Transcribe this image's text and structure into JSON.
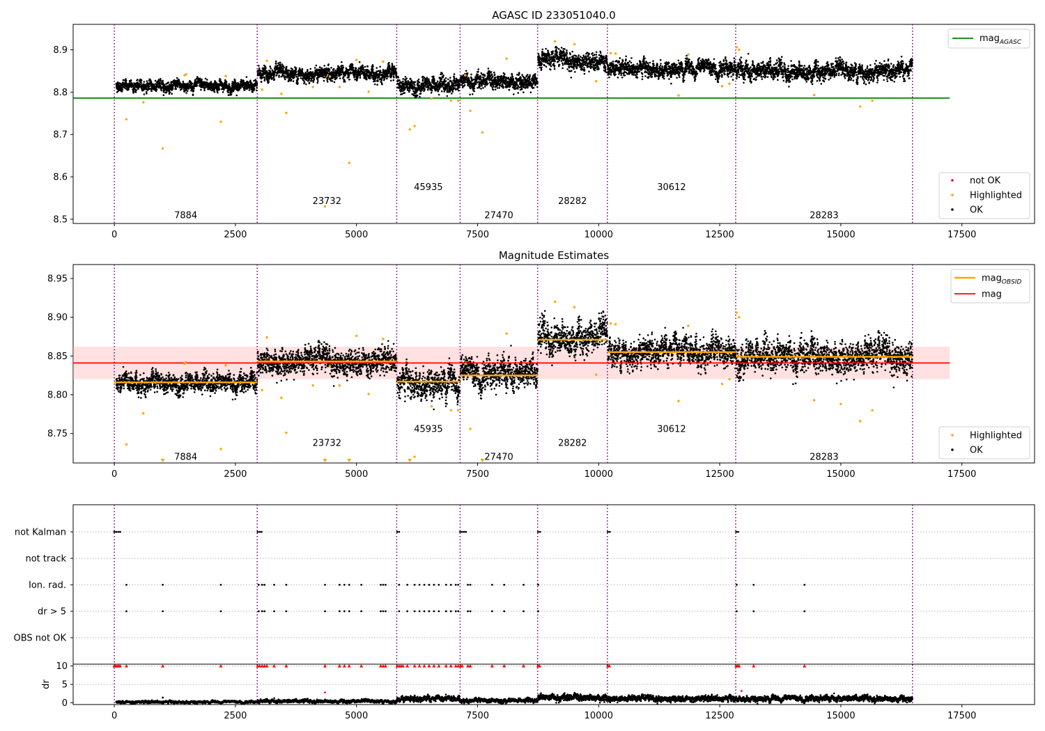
{
  "colors": {
    "ok": "#000000",
    "highlighted": "#ffa500",
    "not_ok": "#ff0000",
    "obs_boundary": "#800080",
    "mag_agasc": "#008000",
    "mag_obsid": "#ffa500",
    "mag": "#ff0000",
    "mag_band": "#ffb3b3",
    "grid": "#b0b0b0"
  },
  "chart_data": [
    {
      "type": "scatter",
      "title": "AGASC ID 233051040.0",
      "xlim": [
        -850,
        19000
      ],
      "ylim": [
        8.49,
        8.96
      ],
      "x_ticks": [
        0,
        2500,
        5000,
        7500,
        10000,
        12500,
        15000,
        17500
      ],
      "x_tick_labels": [
        "0",
        "2500",
        "5000",
        "7500",
        "10000",
        "12500",
        "15000",
        "17500"
      ],
      "y_ticks": [
        8.5,
        8.6,
        8.7,
        8.8,
        8.9
      ],
      "y_tick_labels": [
        "8.5",
        "8.6",
        "8.7",
        "8.8",
        "8.9"
      ],
      "obs_boundaries": [
        0,
        2950,
        5830,
        7140,
        8740,
        10180,
        12830,
        16480
      ],
      "obsid_labels": [
        {
          "text": "7884",
          "x": 1475,
          "y": 8.51
        },
        {
          "text": "23732",
          "x": 4390,
          "y": 8.543
        },
        {
          "text": "45935",
          "x": 6485,
          "y": 8.576
        },
        {
          "text": "27470",
          "x": 7940,
          "y": 8.51
        },
        {
          "text": "28282",
          "x": 9460,
          "y": 8.543
        },
        {
          "text": "30612",
          "x": 11505,
          "y": 8.576
        },
        {
          "text": "28283",
          "x": 14655,
          "y": 8.51
        }
      ],
      "mag_agasc": 8.786,
      "mag_agasc_x": [
        -850,
        17250
      ],
      "segments": [
        {
          "x0": 40,
          "x1": 2950,
          "mean": 8.815,
          "std": 0.006
        },
        {
          "x0": 2960,
          "x1": 5830,
          "mean": 8.843,
          "std": 0.008
        },
        {
          "x0": 5840,
          "x1": 7140,
          "mean": 8.816,
          "std": 0.009
        },
        {
          "x0": 7150,
          "x1": 8740,
          "mean": 8.826,
          "std": 0.009
        },
        {
          "x0": 8750,
          "x1": 10180,
          "mean": 8.874,
          "std": 0.01
        },
        {
          "x0": 10190,
          "x1": 12830,
          "mean": 8.855,
          "std": 0.009
        },
        {
          "x0": 12840,
          "x1": 16480,
          "mean": 8.849,
          "std": 0.01
        }
      ],
      "highlighted": [
        [
          250,
          8.736
        ],
        [
          600,
          8.776
        ],
        [
          1000,
          8.667
        ],
        [
          1450,
          8.84
        ],
        [
          1480,
          8.842
        ],
        [
          2200,
          8.73
        ],
        [
          2300,
          8.838
        ],
        [
          3050,
          8.806
        ],
        [
          3150,
          8.874
        ],
        [
          3450,
          8.796
        ],
        [
          3550,
          8.751
        ],
        [
          4100,
          8.812
        ],
        [
          4350,
          8.53
        ],
        [
          4450,
          8.837
        ],
        [
          4650,
          8.812
        ],
        [
          4850,
          8.633
        ],
        [
          5000,
          8.876
        ],
        [
          5250,
          8.801
        ],
        [
          5550,
          8.872
        ],
        [
          6100,
          8.712
        ],
        [
          6200,
          8.72
        ],
        [
          6550,
          8.785
        ],
        [
          6950,
          8.78
        ],
        [
          7100,
          8.78
        ],
        [
          7250,
          8.84
        ],
        [
          7350,
          8.756
        ],
        [
          7600,
          8.705
        ],
        [
          8100,
          8.879
        ],
        [
          9100,
          8.92
        ],
        [
          9500,
          8.913
        ],
        [
          9950,
          8.826
        ],
        [
          10250,
          8.892
        ],
        [
          10350,
          8.891
        ],
        [
          11650,
          8.792
        ],
        [
          11850,
          8.889
        ],
        [
          12550,
          8.814
        ],
        [
          12700,
          8.82
        ],
        [
          12850,
          8.906
        ],
        [
          12900,
          8.9
        ],
        [
          14450,
          8.793
        ],
        [
          15650,
          8.78
        ],
        [
          15400,
          8.766
        ]
      ],
      "legend_line": [
        {
          "label": "mag",
          "sub": "AGASC",
          "color_key": "mag_agasc"
        }
      ],
      "legend_points": [
        {
          "label": "not OK",
          "color_key": "not_ok"
        },
        {
          "label": "Highlighted",
          "color_key": "highlighted"
        },
        {
          "label": "OK",
          "color_key": "ok"
        }
      ]
    },
    {
      "type": "scatter",
      "title": "Magnitude Estimates",
      "xlim": [
        -850,
        19000
      ],
      "ylim": [
        8.712,
        8.968
      ],
      "x_ticks": [
        0,
        2500,
        5000,
        7500,
        10000,
        12500,
        15000,
        17500
      ],
      "x_tick_labels": [
        "0",
        "2500",
        "5000",
        "7500",
        "10000",
        "12500",
        "15000",
        "17500"
      ],
      "y_ticks": [
        8.75,
        8.8,
        8.85,
        8.9,
        8.95
      ],
      "y_tick_labels": [
        "8.75",
        "8.80",
        "8.85",
        "8.90",
        "8.95"
      ],
      "obs_boundaries": [
        0,
        2950,
        5830,
        7140,
        8740,
        10180,
        12830,
        16480
      ],
      "obsid_labels": [
        {
          "text": "7884",
          "x": 1475,
          "y": 8.72
        },
        {
          "text": "23732",
          "x": 4390,
          "y": 8.738
        },
        {
          "text": "45935",
          "x": 6485,
          "y": 8.756
        },
        {
          "text": "27470",
          "x": 7940,
          "y": 8.72
        },
        {
          "text": "28282",
          "x": 9460,
          "y": 8.738
        },
        {
          "text": "30612",
          "x": 11505,
          "y": 8.756
        },
        {
          "text": "28283",
          "x": 14655,
          "y": 8.72
        }
      ],
      "mag": 8.841,
      "mag_band": [
        8.82,
        8.862
      ],
      "mag_x": [
        -850,
        17250
      ],
      "mag_obsid": [
        {
          "x0": 0,
          "x1": 2950,
          "value": 8.816
        },
        {
          "x0": 2960,
          "x1": 5830,
          "value": 8.843
        },
        {
          "x0": 5840,
          "x1": 7140,
          "value": 8.817
        },
        {
          "x0": 7150,
          "x1": 8740,
          "value": 8.825
        },
        {
          "x0": 8750,
          "x1": 10180,
          "value": 8.871
        },
        {
          "x0": 10190,
          "x1": 12830,
          "value": 8.855
        },
        {
          "x0": 12840,
          "x1": 16480,
          "value": 8.849
        }
      ],
      "segments": [
        {
          "x0": 40,
          "x1": 2950,
          "mean": 8.815,
          "std": 0.006
        },
        {
          "x0": 2960,
          "x1": 5830,
          "mean": 8.843,
          "std": 0.008
        },
        {
          "x0": 5840,
          "x1": 7140,
          "mean": 8.816,
          "std": 0.009
        },
        {
          "x0": 7150,
          "x1": 8740,
          "mean": 8.826,
          "std": 0.009
        },
        {
          "x0": 8750,
          "x1": 10180,
          "mean": 8.874,
          "std": 0.01
        },
        {
          "x0": 10190,
          "x1": 12830,
          "mean": 8.855,
          "std": 0.009
        },
        {
          "x0": 12840,
          "x1": 16480,
          "mean": 8.849,
          "std": 0.01
        }
      ],
      "highlighted": [
        [
          250,
          8.736
        ],
        [
          600,
          8.776
        ],
        [
          1450,
          8.84
        ],
        [
          1480,
          8.842
        ],
        [
          2200,
          8.73
        ],
        [
          2300,
          8.838
        ],
        [
          3050,
          8.806
        ],
        [
          3150,
          8.874
        ],
        [
          3450,
          8.796
        ],
        [
          3550,
          8.751
        ],
        [
          4100,
          8.812
        ],
        [
          4450,
          8.837
        ],
        [
          4650,
          8.812
        ],
        [
          5000,
          8.876
        ],
        [
          5250,
          8.801
        ],
        [
          5550,
          8.872
        ],
        [
          6200,
          8.72
        ],
        [
          6550,
          8.785
        ],
        [
          6950,
          8.78
        ],
        [
          7100,
          8.78
        ],
        [
          7250,
          8.84
        ],
        [
          7350,
          8.756
        ],
        [
          8100,
          8.879
        ],
        [
          9100,
          8.92
        ],
        [
          9500,
          8.913
        ],
        [
          9950,
          8.826
        ],
        [
          10250,
          8.892
        ],
        [
          10350,
          8.891
        ],
        [
          11650,
          8.792
        ],
        [
          11850,
          8.889
        ],
        [
          12550,
          8.814
        ],
        [
          12700,
          8.82
        ],
        [
          12850,
          8.906
        ],
        [
          12900,
          8.9
        ],
        [
          14450,
          8.793
        ],
        [
          15000,
          8.788
        ],
        [
          15650,
          8.78
        ],
        [
          15400,
          8.766
        ]
      ],
      "off_scale_below": [
        1000,
        4350,
        4850,
        6100,
        7600
      ],
      "legend_line": [
        {
          "label": "mag",
          "sub": "OBSID",
          "color_key": "mag_obsid"
        },
        {
          "label": "mag",
          "sub": "",
          "color_key": "mag"
        }
      ],
      "legend_points": [
        {
          "label": "Highlighted",
          "color_key": "highlighted"
        },
        {
          "label": "OK",
          "color_key": "ok"
        }
      ]
    },
    {
      "type": "scatter",
      "title": "",
      "xlim": [
        -850,
        19000
      ],
      "category_labels": [
        "not Kalman",
        "not track",
        "Ion. rad.",
        "dr > 5",
        "OBS not OK"
      ],
      "obs_boundaries": [
        0,
        2950,
        5830,
        7140,
        8740,
        10180,
        12830,
        16480
      ],
      "flags": {
        "not Kalman": [
          0,
          40,
          80,
          120,
          2960,
          3000,
          3040,
          5840,
          5880,
          7140,
          7180,
          7220,
          7260,
          8750,
          8790,
          10190,
          10230,
          12840,
          12880
        ],
        "not track": [],
        "Ion. rad.": [
          250,
          1000,
          2200,
          2980,
          3050,
          3100,
          3300,
          3550,
          4350,
          4650,
          4750,
          4850,
          5100,
          5500,
          5550,
          5600,
          5880,
          6050,
          6200,
          6300,
          6400,
          6500,
          6600,
          6700,
          6850,
          6950,
          7050,
          7100,
          7300,
          7350,
          7800,
          8050,
          8450,
          8750,
          12850,
          13200,
          14250
        ],
        "dr > 5": [
          250,
          1000,
          2200,
          2980,
          3050,
          3100,
          3300,
          3550,
          4350,
          4650,
          4750,
          4850,
          5100,
          5500,
          5550,
          5600,
          5880,
          6050,
          6200,
          6300,
          6400,
          6500,
          6600,
          6700,
          6850,
          6950,
          7050,
          7100,
          7300,
          7350,
          7800,
          8050,
          8450,
          8750,
          12850,
          13200,
          14250
        ],
        "OBS not OK": []
      }
    },
    {
      "type": "scatter",
      "title": "",
      "ylabel": "dr",
      "xlim": [
        -850,
        19000
      ],
      "ylim": [
        -0.5,
        10.5
      ],
      "x_ticks": [
        0,
        2500,
        5000,
        7500,
        10000,
        12500,
        15000,
        17500
      ],
      "x_tick_labels": [
        "0",
        "2500",
        "5000",
        "7500",
        "10000",
        "12500",
        "15000",
        "17500"
      ],
      "y_ticks": [
        0,
        5,
        10
      ],
      "y_tick_labels": [
        "0",
        "5",
        "10"
      ],
      "obs_boundaries": [
        0,
        2950,
        5830,
        7140,
        8740,
        10180,
        12830,
        16480
      ],
      "dr_segments": [
        {
          "x0": 40,
          "x1": 2950,
          "mean": 0.2,
          "std": 0.15
        },
        {
          "x0": 2960,
          "x1": 5830,
          "mean": 0.4,
          "std": 0.2
        },
        {
          "x0": 5840,
          "x1": 7140,
          "mean": 1.0,
          "std": 0.35
        },
        {
          "x0": 7150,
          "x1": 8740,
          "mean": 0.6,
          "std": 0.25
        },
        {
          "x0": 8750,
          "x1": 10180,
          "mean": 1.4,
          "std": 0.4
        },
        {
          "x0": 10190,
          "x1": 12830,
          "mean": 1.1,
          "std": 0.35
        },
        {
          "x0": 12840,
          "x1": 16480,
          "mean": 1.1,
          "std": 0.35
        }
      ],
      "capped_not_ok": [
        0,
        30,
        60,
        90,
        120,
        250,
        1000,
        2200,
        2960,
        3000,
        3050,
        3100,
        3150,
        3300,
        3550,
        4350,
        4650,
        4750,
        4850,
        5100,
        5500,
        5550,
        5600,
        5840,
        5880,
        5920,
        5960,
        6050,
        6200,
        6300,
        6400,
        6500,
        6600,
        6700,
        6850,
        6950,
        7050,
        7100,
        7150,
        7180,
        7300,
        7350,
        7800,
        8050,
        8450,
        8750,
        8780,
        10190,
        10220,
        12840,
        12870,
        12900,
        13200,
        14250
      ],
      "outliers_not_ok": [
        [
          4350,
          2.8
        ],
        [
          12950,
          3.2
        ]
      ],
      "outliers_ok": [
        [
          1000,
          1.4
        ]
      ]
    }
  ]
}
